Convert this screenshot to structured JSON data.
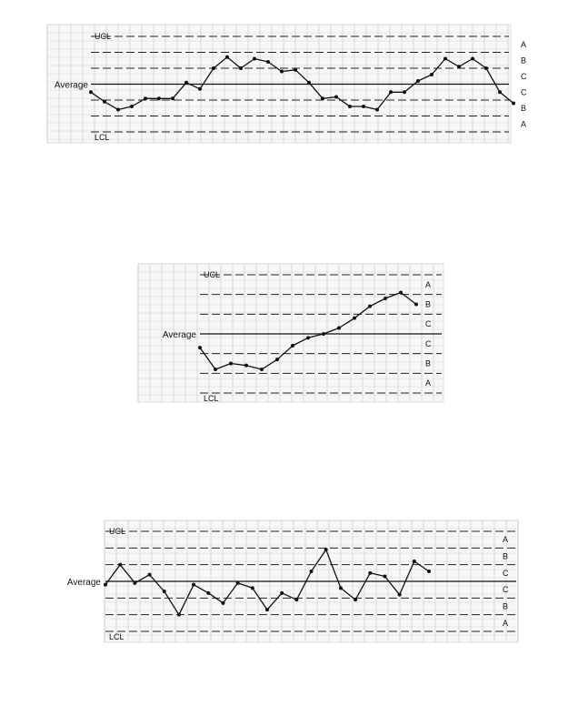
{
  "chart_data": [
    {
      "type": "line",
      "title": "",
      "line_labels": {
        "ucl": "UCL",
        "lcl": "LCL",
        "average": "Average"
      },
      "zone_labels": [
        "A",
        "B",
        "C",
        "C",
        "B",
        "A"
      ],
      "ylim": [
        -3,
        3
      ],
      "grid": true,
      "values": [
        -0.5,
        -1.1,
        -1.6,
        -1.4,
        -0.9,
        -0.9,
        -0.9,
        0.1,
        -0.3,
        1.0,
        1.7,
        1.0,
        1.6,
        1.4,
        0.8,
        0.9,
        0.1,
        -0.9,
        -0.8,
        -1.4,
        -1.4,
        -1.6,
        -0.5,
        -0.5,
        0.2,
        0.6,
        1.6,
        1.1,
        1.6,
        1.0,
        -0.5,
        -1.2
      ]
    },
    {
      "type": "line",
      "title": "",
      "line_labels": {
        "ucl": "UCL",
        "lcl": "LCL",
        "average": "Average"
      },
      "zone_labels": [
        "A",
        "B",
        "C",
        "C",
        "B",
        "A"
      ],
      "ylim": [
        -3,
        3
      ],
      "grid": true,
      "values": [
        -0.7,
        -1.8,
        -1.5,
        -1.6,
        -1.8,
        -1.3,
        -0.6,
        -0.2,
        0.0,
        0.3,
        0.8,
        1.4,
        1.8,
        2.1,
        1.5
      ]
    },
    {
      "type": "line",
      "title": "",
      "line_labels": {
        "ucl": "UCL",
        "lcl": "LCL",
        "average": "Average"
      },
      "zone_labels": [
        "A",
        "B",
        "C",
        "C",
        "B",
        "A"
      ],
      "ylim": [
        -3,
        3
      ],
      "grid": true,
      "values": [
        -0.2,
        1.0,
        -0.1,
        0.4,
        -0.6,
        -2.0,
        -0.2,
        -0.7,
        -1.3,
        -0.1,
        -0.4,
        -1.7,
        -0.7,
        -1.1,
        0.6,
        1.9,
        -0.4,
        -1.1,
        0.5,
        0.3,
        -0.8,
        1.2,
        0.6
      ]
    }
  ]
}
